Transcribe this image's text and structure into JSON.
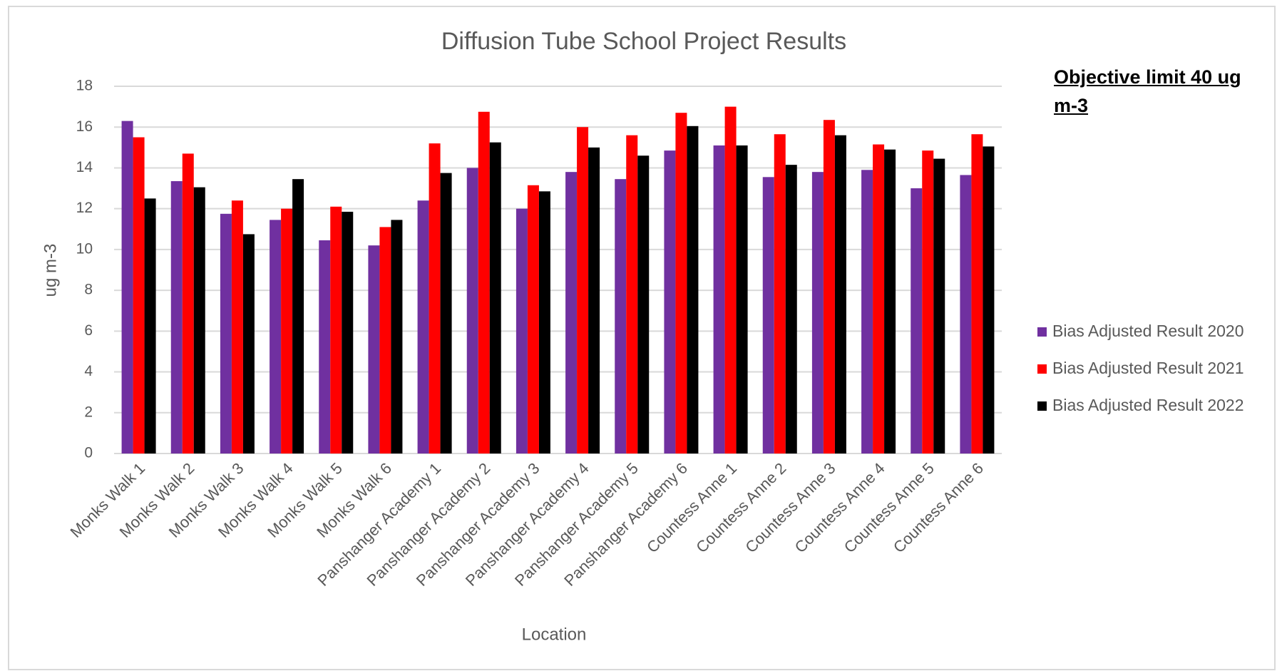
{
  "chart_data": {
    "type": "bar",
    "title": "Diffusion Tube School Project Results",
    "x_label": "Location",
    "y_label": "ug m-3",
    "annotation": "Objective limit  40 ug m-3",
    "categories": [
      "Monks Walk 1",
      "Monks Walk 2",
      "Monks Walk 3",
      "Monks Walk 4",
      "Monks Walk 5",
      "Monks Walk 6",
      "Panshanger Academy 1",
      "Panshanger Academy 2",
      "Panshanger Academy 3",
      "Panshanger Academy 4",
      "Panshanger Academy 5",
      "Panshanger Academy 6",
      "Countess Anne 1",
      "Countess Anne 2",
      "Countess Anne 3",
      "Countess Anne 4",
      "Countess Anne 5",
      "Countess Anne 6"
    ],
    "series": [
      {
        "name": "Bias Adjusted Result 2020",
        "color": "#7030a0",
        "values": [
          16.3,
          13.35,
          11.75,
          11.45,
          10.45,
          10.2,
          12.4,
          14.0,
          12.0,
          13.8,
          13.45,
          14.85,
          15.1,
          13.55,
          13.8,
          13.9,
          13.0,
          13.65
        ]
      },
      {
        "name": "Bias Adjusted Result 2021",
        "color": "#ff0000",
        "values": [
          15.5,
          14.7,
          12.4,
          12.0,
          12.1,
          11.1,
          15.2,
          16.75,
          13.15,
          16.0,
          15.6,
          16.7,
          17.0,
          15.65,
          16.35,
          15.15,
          14.85,
          15.65
        ]
      },
      {
        "name": "Bias Adjusted Result 2022",
        "color": "#000000",
        "values": [
          12.5,
          13.05,
          10.75,
          13.45,
          11.85,
          11.45,
          13.75,
          15.25,
          12.85,
          15.0,
          14.6,
          16.05,
          15.1,
          14.15,
          15.6,
          14.9,
          14.45,
          15.05
        ]
      }
    ],
    "ylim": [
      0,
      18
    ],
    "yticks": [
      0,
      2,
      4,
      6,
      8,
      10,
      12,
      14,
      16,
      18
    ],
    "grid": true,
    "legend": "right"
  }
}
